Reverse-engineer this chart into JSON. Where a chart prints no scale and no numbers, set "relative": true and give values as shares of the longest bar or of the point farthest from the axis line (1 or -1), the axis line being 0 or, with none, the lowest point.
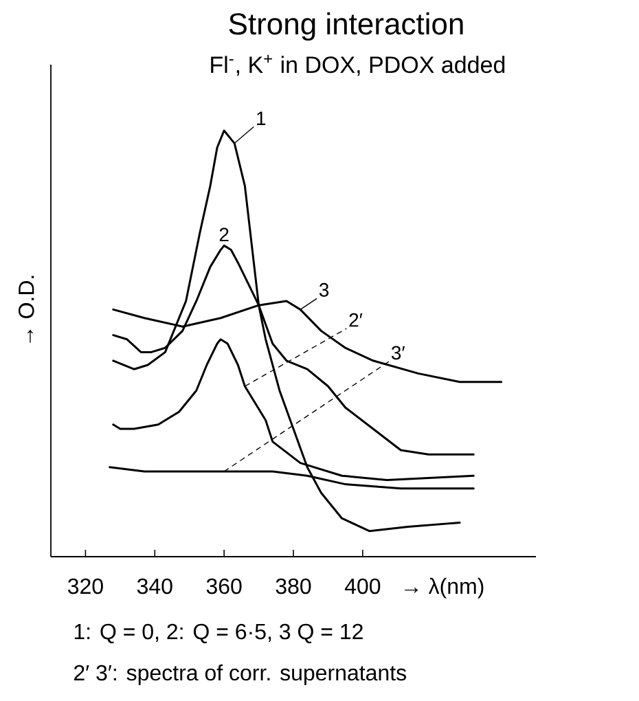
{
  "chart_data": {
    "type": "line",
    "title": "Strong interaction",
    "subtitle": "Fl$^{-}$, K$^{+}$ in DOX, PDOX added",
    "xlabel": "→ λ(nm)",
    "ylabel": "→ O.D.",
    "relative": true,
    "marker": "none",
    "xlim": [
      310,
      450
    ],
    "xticks": [
      320,
      340,
      360,
      380,
      400
    ],
    "series": [
      {
        "name": "1",
        "color": "#000000",
        "x": [
          328,
          334,
          338,
          343,
          346,
          349,
          351,
          353,
          356,
          358,
          360,
          363,
          366,
          368,
          370,
          372,
          376,
          380,
          384,
          388,
          394,
          402,
          413,
          428
        ],
        "values": [
          0.46,
          0.44,
          0.45,
          0.48,
          0.54,
          0.6,
          0.68,
          0.76,
          0.87,
          0.96,
          1.0,
          0.97,
          0.87,
          0.73,
          0.59,
          0.51,
          0.39,
          0.3,
          0.21,
          0.15,
          0.09,
          0.06,
          0.07,
          0.08
        ]
      },
      {
        "name": "2",
        "color": "#000000",
        "x": [
          328,
          332,
          336,
          339,
          343,
          348,
          352,
          356,
          359,
          360,
          362,
          364,
          370,
          374,
          378,
          384,
          390,
          395,
          403,
          411,
          419,
          432
        ],
        "values": [
          0.52,
          0.51,
          0.48,
          0.48,
          0.49,
          0.53,
          0.6,
          0.68,
          0.72,
          0.73,
          0.72,
          0.69,
          0.59,
          0.5,
          0.46,
          0.44,
          0.4,
          0.35,
          0.3,
          0.25,
          0.24,
          0.24
        ]
      },
      {
        "name": "3",
        "color": "#000000",
        "x": [
          328,
          337,
          348,
          359,
          370,
          378,
          382,
          388,
          395,
          403,
          416,
          428,
          440
        ],
        "values": [
          0.58,
          0.56,
          0.54,
          0.56,
          0.59,
          0.6,
          0.58,
          0.53,
          0.49,
          0.46,
          0.43,
          0.41,
          0.41
        ]
      },
      {
        "name": "2′",
        "color": "#000000",
        "x": [
          328,
          330,
          334,
          341,
          347,
          352,
          355,
          358,
          359,
          361,
          364,
          366,
          372,
          374,
          382,
          394,
          407,
          432
        ],
        "values": [
          0.31,
          0.3,
          0.3,
          0.31,
          0.34,
          0.39,
          0.45,
          0.5,
          0.51,
          0.5,
          0.45,
          0.4,
          0.32,
          0.27,
          0.22,
          0.19,
          0.18,
          0.19
        ]
      },
      {
        "name": "3′",
        "color": "#000000",
        "x": [
          327,
          337,
          360,
          374,
          384,
          395,
          411,
          432
        ],
        "values": [
          0.21,
          0.2,
          0.2,
          0.2,
          0.19,
          0.17,
          0.16,
          0.16
        ]
      }
    ],
    "annotations": [
      "1: Q = 0,  2: Q = 6·5,  3 Q = 12",
      "2′ 3′: spectra of corr. supernatants"
    ]
  }
}
